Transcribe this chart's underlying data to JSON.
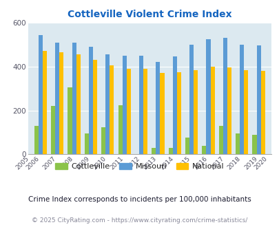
{
  "title": "Cottleville Violent Crime Index",
  "all_years": [
    "2005",
    "2006",
    "2007",
    "2008",
    "2009",
    "2010",
    "2011",
    "2012",
    "2013",
    "2014",
    "2015",
    "2016",
    "2017",
    "2018",
    "2019",
    "2020"
  ],
  "data_years": [
    "2006",
    "2007",
    "2008",
    "2009",
    "2010",
    "2011",
    "2012",
    "2013",
    "2014",
    "2015",
    "2016",
    "2017",
    "2018",
    "2019"
  ],
  "cottleville": [
    130,
    220,
    305,
    95,
    125,
    225,
    0,
    30,
    30,
    75,
    40,
    130,
    95,
    90
  ],
  "missouri": [
    545,
    510,
    510,
    490,
    455,
    450,
    450,
    420,
    445,
    500,
    525,
    530,
    500,
    495
  ],
  "national": [
    470,
    465,
    455,
    430,
    405,
    390,
    390,
    370,
    375,
    385,
    400,
    395,
    385,
    380
  ],
  "color_cottleville": "#8bc34a",
  "color_missouri": "#5b9bd5",
  "color_national": "#ffc000",
  "ylim": [
    0,
    600
  ],
  "yticks": [
    0,
    200,
    400,
    600
  ],
  "bg_color": "#dce9f0",
  "title_color": "#1565c0",
  "subtitle": "Crime Index corresponds to incidents per 100,000 inhabitants",
  "footer": "© 2025 CityRating.com - https://www.cityrating.com/crime-statistics/",
  "bar_width": 0.25,
  "legend_labels": [
    "Cottleville",
    "Missouri",
    "National"
  ]
}
